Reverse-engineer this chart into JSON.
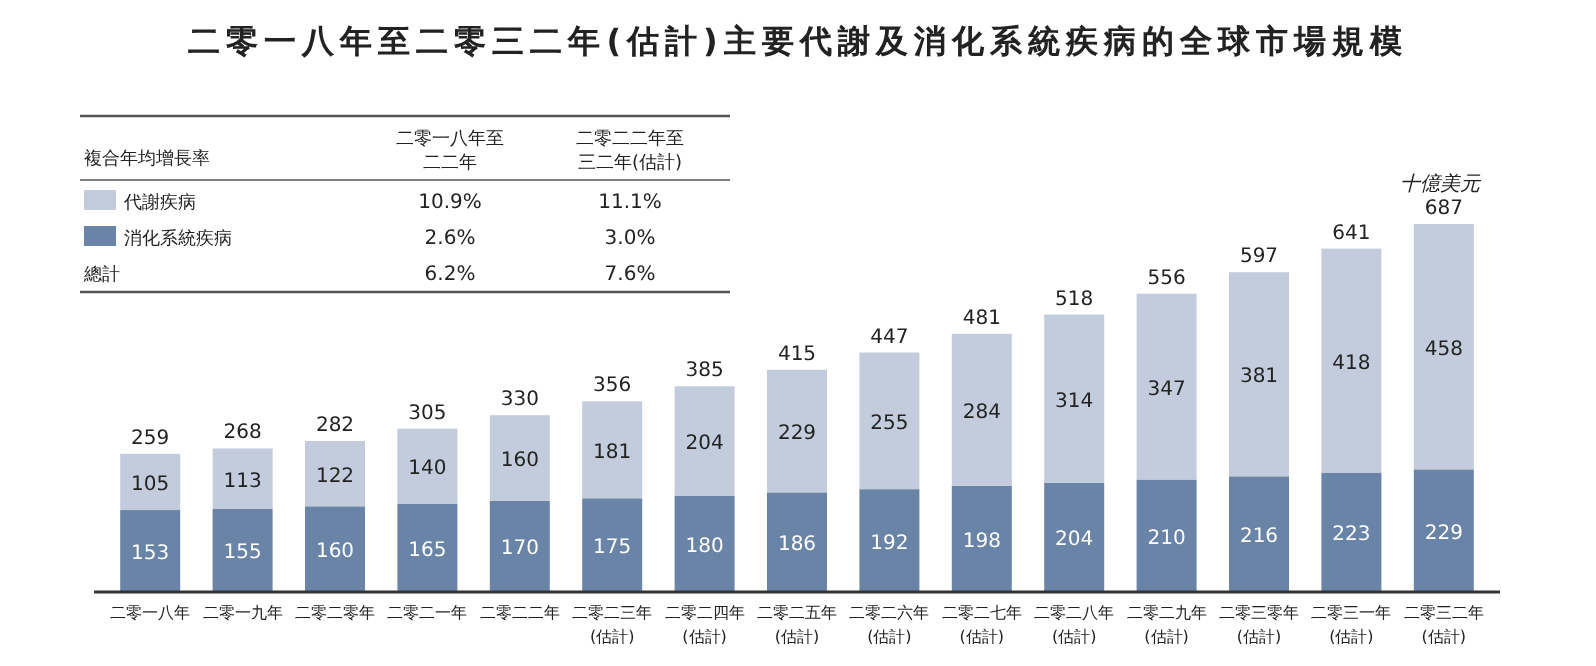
{
  "chart_data": {
    "type": "bar",
    "title": "二零一八年至二零三二年(估計)主要代謝及消化系統疾病的全球市場規模",
    "ylabel": "十億美元",
    "categories": [
      "二零一八年",
      "二零一九年",
      "二零二零年",
      "二零二一年",
      "二零二二年",
      "二零二三年\n(估計)",
      "二零二四年\n(估計)",
      "二零二五年\n(估計)",
      "二零二六年\n(估計)",
      "二零二七年\n(估計)",
      "二零二八年\n(估計)",
      "二零二九年\n(估計)",
      "二零三零年\n(估計)",
      "二零三一年\n(估計)",
      "二零三二年\n(估計)"
    ],
    "stacked": true,
    "data_labels": true,
    "legend": "top left",
    "series": [
      {
        "name": "消化系統疾病",
        "color": "#6a84a8",
        "values": [
          153,
          155,
          160,
          165,
          170,
          175,
          180,
          186,
          192,
          198,
          204,
          210,
          216,
          223,
          229
        ]
      },
      {
        "name": "代謝疾病",
        "color": "#c2ccdc",
        "values": [
          105,
          113,
          122,
          140,
          160,
          181,
          204,
          229,
          255,
          284,
          314,
          347,
          381,
          418,
          458
        ]
      }
    ],
    "totals": [
      "259",
      "268",
      "282",
      "305",
      "330",
      "356",
      "385",
      "415",
      "447",
      "481",
      "518",
      "556",
      "597",
      "641",
      "687"
    ],
    "annotations": [
      "複合年均增長率",
      "二零一八年至",
      "二二年",
      "二零二二年至",
      "三二年(估計)",
      "10.9%",
      "11.1%",
      "2.6%",
      "3.0%",
      "總計",
      "6.2%",
      "7.6%"
    ]
  }
}
